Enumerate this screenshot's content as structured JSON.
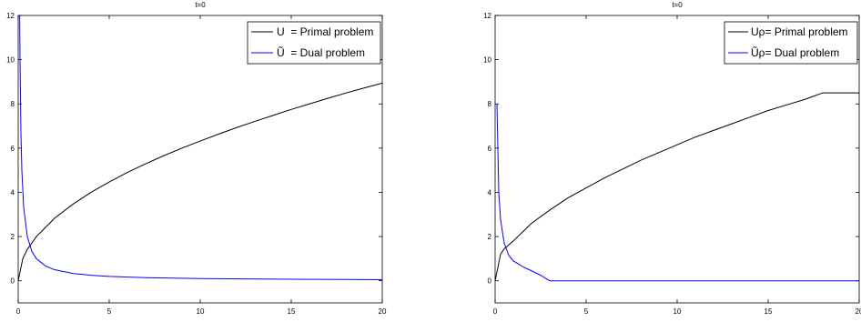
{
  "chart_data": [
    {
      "type": "line",
      "title": "t=0",
      "xlabel": "",
      "ylabel": "",
      "xlim": [
        0,
        20
      ],
      "ylim": [
        -1,
        12
      ],
      "xticks": [
        0,
        5,
        10,
        15,
        20
      ],
      "yticks": [
        0,
        2,
        4,
        6,
        8,
        10,
        12
      ],
      "grid": false,
      "legend_position": "top-right",
      "series": [
        {
          "name": "U  = Primal problem",
          "color": "#000000",
          "x": [
            0,
            0.25,
            0.5,
            1,
            2,
            3,
            4,
            5,
            6,
            7,
            8,
            9,
            10,
            11,
            12,
            13,
            14,
            15,
            16,
            17,
            18,
            19,
            20
          ],
          "y": [
            0,
            1.0,
            1.42,
            2.0,
            2.83,
            3.46,
            4.0,
            4.47,
            4.9,
            5.29,
            5.66,
            6.0,
            6.32,
            6.63,
            6.93,
            7.21,
            7.48,
            7.75,
            8.0,
            8.25,
            8.49,
            8.72,
            8.94
          ]
        },
        {
          "name": "Ũ  = Dual problem",
          "color": "#0000ff",
          "x": [
            0.08,
            0.1,
            0.15,
            0.2,
            0.3,
            0.5,
            0.75,
            1,
            1.5,
            2,
            3,
            4,
            5,
            7,
            10,
            15,
            20
          ],
          "y": [
            12,
            10,
            6.67,
            5.0,
            3.33,
            2.0,
            1.33,
            1.0,
            0.67,
            0.5,
            0.33,
            0.25,
            0.2,
            0.14,
            0.1,
            0.07,
            0.05
          ]
        }
      ]
    },
    {
      "type": "line",
      "title": "t=0",
      "xlabel": "",
      "ylabel": "",
      "xlim": [
        0,
        20
      ],
      "ylim": [
        -1,
        12
      ],
      "xticks": [
        0,
        5,
        10,
        15,
        20
      ],
      "yticks": [
        0,
        2,
        4,
        6,
        8,
        10,
        12
      ],
      "grid": false,
      "legend_position": "top-right",
      "series": [
        {
          "name": "Uρ= Primal problem",
          "color": "#000000",
          "x": [
            0,
            0.3,
            0.5,
            1,
            2,
            3,
            4,
            5,
            6,
            7,
            8,
            9,
            10,
            11,
            12,
            13,
            14,
            15,
            16,
            17,
            18,
            19,
            20
          ],
          "y": [
            0,
            1.2,
            1.45,
            1.8,
            2.6,
            3.2,
            3.75,
            4.2,
            4.65,
            5.05,
            5.45,
            5.8,
            6.15,
            6.5,
            6.8,
            7.1,
            7.4,
            7.7,
            7.95,
            8.2,
            8.5,
            8.5,
            8.5
          ]
        },
        {
          "name": "Ũρ= Dual problem",
          "color": "#0000ff",
          "x": [
            0.1,
            0.2,
            0.3,
            0.5,
            0.75,
            1,
            1.5,
            2,
            2.5,
            3,
            20
          ],
          "y": [
            8.0,
            4.0,
            2.75,
            1.7,
            1.15,
            0.9,
            0.65,
            0.45,
            0.25,
            0,
            0
          ]
        }
      ]
    }
  ]
}
